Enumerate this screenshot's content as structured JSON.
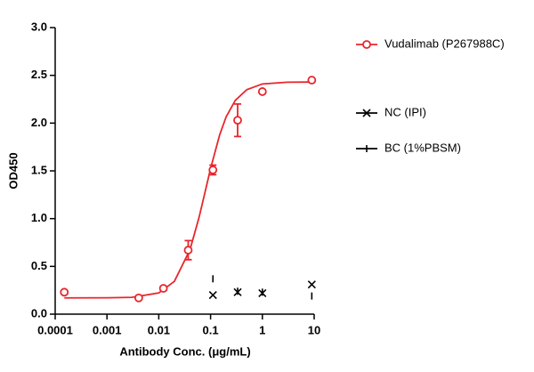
{
  "chart_data": {
    "type": "scatter",
    "x_label": "Antibody Conc. (μg/mL)",
    "y_label": "OD450",
    "x_scale": "log",
    "xlim": [
      0.0001,
      10
    ],
    "xticks": [
      0.0001,
      0.001,
      0.01,
      0.1,
      1,
      10
    ],
    "ylim": [
      0,
      3
    ],
    "yticks": [
      {
        "value": 0,
        "label": "0.0"
      },
      {
        "value": 0.5,
        "label": "0.5"
      },
      {
        "value": 1,
        "label": "1.0"
      },
      {
        "value": 1.5,
        "label": "1.5"
      },
      {
        "value": 2,
        "label": "2.0"
      },
      {
        "value": 2.5,
        "label": "2.5"
      },
      {
        "value": 3,
        "label": "3.0"
      }
    ],
    "series": [
      {
        "name": "Vudalimab (P267988C)",
        "color": "#e8262b",
        "marker": "circle",
        "x": [
          0.00015,
          0.0041,
          0.0123,
          0.037,
          0.111,
          0.333,
          1,
          9
        ],
        "values": [
          0.23,
          0.17,
          0.27,
          0.67,
          1.51,
          2.03,
          2.33,
          2.45
        ],
        "errors": [
          null,
          null,
          null,
          0.1,
          0.05,
          0.17,
          null,
          null
        ],
        "fit": {
          "x": [
            0.00015,
            0.001,
            0.003,
            0.01,
            0.02,
            0.04,
            0.06,
            0.08,
            0.1,
            0.15,
            0.2,
            0.3,
            0.5,
            1,
            3,
            9
          ],
          "values": [
            0.17,
            0.171,
            0.176,
            0.222,
            0.343,
            0.674,
            1.014,
            1.3,
            1.524,
            1.878,
            2.066,
            2.238,
            2.35,
            2.41,
            2.428,
            2.43
          ]
        }
      },
      {
        "name": "NC (IPI)",
        "color": "#000000",
        "marker": "x",
        "x": [
          0.111,
          0.333,
          1,
          9
        ],
        "values": [
          0.2,
          0.23,
          0.22,
          0.31
        ]
      },
      {
        "name": "BC (1%PBSM)",
        "color": "#000000",
        "marker": "tick",
        "x": [
          0.111,
          0.333,
          1,
          9
        ],
        "values": [
          0.37,
          0.24,
          0.23,
          0.19
        ]
      }
    ]
  }
}
